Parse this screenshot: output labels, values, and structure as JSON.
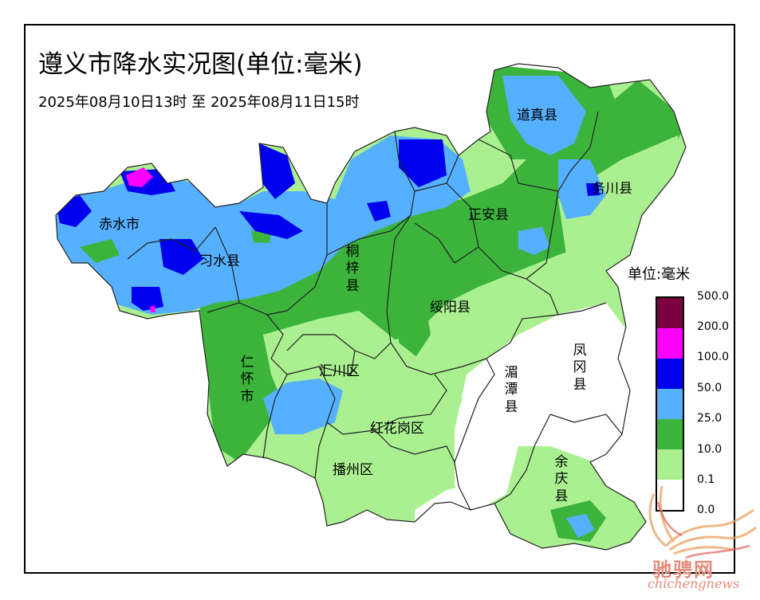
{
  "header": {
    "title": "遵义市降水实况图(单位:毫米)",
    "period": "2025年08月10日13时 至 2025年08月11日15时"
  },
  "counties": [
    {
      "id": "daozhen",
      "name": "道真县"
    },
    {
      "id": "wuchuan",
      "name": "务川县"
    },
    {
      "id": "zhengan",
      "name": "正安县"
    },
    {
      "id": "chishui",
      "name": "赤水市"
    },
    {
      "id": "xishui",
      "name": "习水县"
    },
    {
      "id": "tongzi",
      "name": "桐梓县"
    },
    {
      "id": "suiyang",
      "name": "绥阳县"
    },
    {
      "id": "renhuai",
      "name": "仁怀市"
    },
    {
      "id": "huichuan",
      "name": "汇川区"
    },
    {
      "id": "meitan",
      "name": "湄潭县"
    },
    {
      "id": "fenggang",
      "name": "凤冈县"
    },
    {
      "id": "honghuagang",
      "name": "红花岗区"
    },
    {
      "id": "bozhou",
      "name": "播州区"
    },
    {
      "id": "yuqing",
      "name": "余庆县"
    }
  ],
  "legend": {
    "unit_label": "单位:毫米",
    "bins": [
      {
        "label": "500.0",
        "color": "#7a0040"
      },
      {
        "label": "200.0",
        "color": "#ff00ff"
      },
      {
        "label": "100.0",
        "color": "#0000ee"
      },
      {
        "label": "50.0",
        "color": "#55b0ff"
      },
      {
        "label": "25.0",
        "color": "#3cb43c"
      },
      {
        "label": "10.0",
        "color": "#aaf090"
      },
      {
        "label": "0.1",
        "color": "#ffffff"
      },
      {
        "label": "0.0",
        "color": ""
      }
    ]
  },
  "watermark": {
    "cn": "驰骋网",
    "en": "chichengnews"
  }
}
